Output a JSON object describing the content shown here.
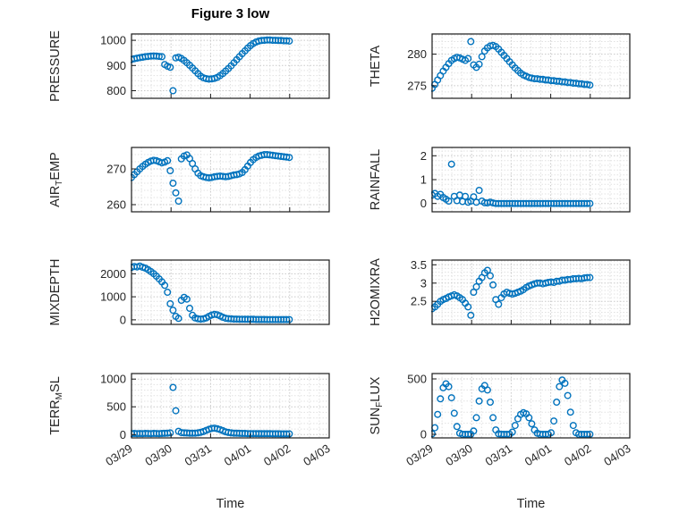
{
  "figure": {
    "title": "Figure 3 low",
    "xlabel": "Time",
    "x_tick_labels": [
      "03/29",
      "03/30",
      "03/31",
      "04/01",
      "04/02",
      "04/03"
    ],
    "x_range": [
      0,
      5
    ],
    "x_major_step": 1,
    "x_minor_step": 0.25,
    "grid": "on",
    "marker_color": "#0072BD",
    "grid_major_color": "#c8c8c8",
    "grid_minor_color": "#e1e1e1",
    "axis_color": "#1a1a1a",
    "text_color": "#262626",
    "x_days": [
      0.0,
      0.07,
      0.14,
      0.21,
      0.28,
      0.35,
      0.42,
      0.49,
      0.56,
      0.63,
      0.7,
      0.77,
      0.84,
      0.91,
      0.98,
      1.05,
      1.12,
      1.19,
      1.26,
      1.33,
      1.4,
      1.47,
      1.54,
      1.61,
      1.68,
      1.75,
      1.82,
      1.89,
      1.96,
      2.03,
      2.1,
      2.17,
      2.24,
      2.31,
      2.38,
      2.45,
      2.52,
      2.59,
      2.66,
      2.73,
      2.8,
      2.87,
      2.94,
      3.01,
      3.08,
      3.15,
      3.22,
      3.29,
      3.36,
      3.43,
      3.5,
      3.57,
      3.64,
      3.71,
      3.78,
      3.85,
      3.92,
      3.99
    ]
  },
  "chart_data": [
    {
      "type": "scatter",
      "name": "pressure",
      "row": 0,
      "col": 0,
      "ylabel": [
        {
          "t": "PRESSURE"
        }
      ],
      "ylim": [
        770,
        1025
      ],
      "yticks": [
        800,
        900,
        1000
      ],
      "ytick_labels": [
        "800",
        "900",
        "1000"
      ],
      "y_minor_step": 20,
      "y": [
        924,
        927,
        929,
        931,
        933,
        935,
        936,
        937,
        938,
        937,
        936,
        935,
        904,
        897,
        893,
        800,
        930,
        933,
        928,
        920,
        911,
        901,
        890,
        879,
        868,
        858,
        851,
        848,
        846,
        847,
        849,
        853,
        860,
        868,
        878,
        888,
        899,
        911,
        923,
        935,
        947,
        958,
        969,
        979,
        987,
        993,
        997,
        999,
        1000,
        1001,
        1001,
        1000,
        1000,
        999,
        999,
        998,
        998,
        997
      ]
    },
    {
      "type": "scatter",
      "name": "theta",
      "row": 0,
      "col": 1,
      "ylabel": [
        {
          "t": "THETA"
        }
      ],
      "ylim": [
        273,
        283.2
      ],
      "yticks": [
        275,
        280
      ],
      "ytick_labels": [
        "275",
        "280"
      ],
      "y_minor_step": 1,
      "y": [
        274.6,
        275.2,
        275.9,
        276.6,
        277.3,
        277.9,
        278.5,
        279.0,
        279.3,
        279.5,
        279.4,
        279.2,
        279.0,
        279.3,
        282.0,
        278.3,
        277.9,
        278.4,
        279.6,
        280.5,
        281.0,
        281.3,
        281.4,
        281.2,
        280.8,
        280.3,
        279.8,
        279.3,
        278.8,
        278.3,
        277.8,
        277.4,
        277.0,
        276.7,
        276.5,
        276.3,
        276.2,
        276.1,
        276.1,
        276.0,
        276.0,
        275.9,
        275.9,
        275.8,
        275.8,
        275.7,
        275.7,
        275.6,
        275.6,
        275.5,
        275.5,
        275.4,
        275.4,
        275.3,
        275.3,
        275.2,
        275.2,
        275.1
      ]
    },
    {
      "type": "scatter",
      "name": "airtemp",
      "row": 1,
      "col": 0,
      "ylabel": [
        {
          "t": "AIR"
        },
        {
          "t": "T",
          "sub": true
        },
        {
          "t": "EMP"
        }
      ],
      "ylim": [
        258,
        276
      ],
      "yticks": [
        260,
        270
      ],
      "ytick_labels": [
        "260",
        "270"
      ],
      "y_minor_step": 2,
      "y": [
        267.6,
        268.4,
        269.2,
        270.0,
        270.7,
        271.3,
        271.8,
        272.2,
        272.4,
        272.3,
        272.0,
        271.7,
        271.9,
        272.3,
        269.5,
        266.0,
        263.3,
        261.0,
        272.8,
        273.6,
        273.9,
        272.9,
        271.5,
        270.0,
        268.8,
        268.1,
        267.8,
        267.6,
        267.5,
        267.6,
        267.8,
        267.9,
        268.0,
        267.9,
        267.8,
        267.9,
        268.1,
        268.3,
        268.4,
        268.6,
        269.0,
        269.8,
        270.8,
        271.8,
        272.6,
        273.2,
        273.6,
        273.8,
        274.0,
        274.0,
        273.9,
        273.8,
        273.7,
        273.6,
        273.5,
        273.4,
        273.3,
        273.2
      ]
    },
    {
      "type": "scatter",
      "name": "rainfall",
      "row": 1,
      "col": 1,
      "ylabel": [
        {
          "t": "RAINFALL"
        }
      ],
      "ylim": [
        -0.35,
        2.35
      ],
      "yticks": [
        0,
        1,
        2
      ],
      "ytick_labels": [
        "0",
        "1",
        "2"
      ],
      "y_minor_step": 0.2,
      "y": [
        0.35,
        0.42,
        0.3,
        0.38,
        0.25,
        0.18,
        0.1,
        1.65,
        0.3,
        0.12,
        0.35,
        0.08,
        0.3,
        0.05,
        0.1,
        0.28,
        0.05,
        0.55,
        0.1,
        0.03,
        0.02,
        0.05,
        0.02,
        0,
        0,
        0,
        0,
        0,
        0,
        0,
        0,
        0,
        0,
        0,
        0,
        0,
        0,
        0,
        0,
        0,
        0,
        0,
        0,
        0,
        0,
        0,
        0,
        0,
        0,
        0,
        0,
        0,
        0,
        0,
        0,
        0,
        0,
        0
      ]
    },
    {
      "type": "scatter",
      "name": "mixdepth",
      "row": 2,
      "col": 0,
      "ylabel": [
        {
          "t": "MIXDEPTH"
        }
      ],
      "ylim": [
        -200,
        2600
      ],
      "yticks": [
        0,
        1000,
        2000
      ],
      "ytick_labels": [
        "0",
        "1000",
        "2000"
      ],
      "y_minor_step": 200,
      "y": [
        2280,
        2320,
        2300,
        2340,
        2290,
        2250,
        2180,
        2100,
        2010,
        1900,
        1780,
        1650,
        1500,
        1200,
        700,
        420,
        150,
        60,
        850,
        980,
        900,
        500,
        200,
        80,
        40,
        30,
        40,
        80,
        150,
        210,
        240,
        220,
        170,
        110,
        70,
        50,
        40,
        30,
        30,
        25,
        25,
        20,
        20,
        20,
        20,
        15,
        15,
        15,
        15,
        10,
        10,
        10,
        10,
        10,
        10,
        10,
        10,
        10
      ]
    },
    {
      "type": "scatter",
      "name": "h2omixra",
      "row": 2,
      "col": 1,
      "ylabel": [
        {
          "t": "H2OMIXRA"
        }
      ],
      "ylim": [
        1.87,
        3.63
      ],
      "yticks": [
        2.5,
        3,
        3.5
      ],
      "ytick_labels": [
        "2.5",
        "3",
        "3.5"
      ],
      "y_minor_step": 0.1,
      "y": [
        2.3,
        2.35,
        2.42,
        2.5,
        2.55,
        2.58,
        2.62,
        2.65,
        2.68,
        2.65,
        2.6,
        2.55,
        2.45,
        2.35,
        2.12,
        2.75,
        2.9,
        3.05,
        3.15,
        3.28,
        3.35,
        3.2,
        2.95,
        2.55,
        2.42,
        2.6,
        2.7,
        2.75,
        2.72,
        2.7,
        2.72,
        2.75,
        2.78,
        2.82,
        2.88,
        2.92,
        2.95,
        2.98,
        3.0,
        3.0,
        2.98,
        3.0,
        3.02,
        3.03,
        3.02,
        3.05,
        3.05,
        3.08,
        3.08,
        3.1,
        3.1,
        3.12,
        3.12,
        3.13,
        3.12,
        3.14,
        3.15,
        3.15
      ]
    },
    {
      "type": "scatter",
      "name": "terrmsl",
      "row": 3,
      "col": 0,
      "ylabel": [
        {
          "t": "TERR"
        },
        {
          "t": "M",
          "sub": true
        },
        {
          "t": "SL"
        }
      ],
      "ylim": [
        -60,
        1100
      ],
      "yticks": [
        0,
        500,
        1000
      ],
      "ytick_labels": [
        "0",
        "500",
        "1000"
      ],
      "y_minor_step": 100,
      "y": [
        18,
        20,
        17,
        19,
        18,
        20,
        19,
        18,
        20,
        19,
        18,
        20,
        22,
        25,
        30,
        850,
        430,
        60,
        35,
        30,
        28,
        25,
        24,
        26,
        30,
        40,
        55,
        75,
        95,
        110,
        115,
        105,
        90,
        70,
        50,
        38,
        30,
        26,
        24,
        22,
        20,
        20,
        18,
        18,
        17,
        17,
        16,
        16,
        15,
        15,
        15,
        14,
        14,
        14,
        13,
        13,
        13,
        12
      ]
    },
    {
      "type": "scatter",
      "name": "sunflux",
      "row": 3,
      "col": 1,
      "ylabel": [
        {
          "t": "SUN"
        },
        {
          "t": "F",
          "sub": true
        },
        {
          "t": "LUX"
        }
      ],
      "ylim": [
        -32,
        548
      ],
      "yticks": [
        0,
        500
      ],
      "ytick_labels": [
        "0",
        "500"
      ],
      "y_minor_step": 100,
      "y": [
        5,
        60,
        180,
        320,
        420,
        455,
        430,
        330,
        190,
        70,
        10,
        0,
        0,
        0,
        0,
        30,
        150,
        300,
        410,
        440,
        400,
        290,
        150,
        40,
        5,
        0,
        0,
        0,
        0,
        20,
        80,
        140,
        180,
        195,
        185,
        150,
        95,
        40,
        10,
        0,
        0,
        0,
        0,
        15,
        120,
        290,
        430,
        490,
        460,
        350,
        200,
        80,
        15,
        0,
        0,
        0,
        0,
        0
      ]
    }
  ]
}
